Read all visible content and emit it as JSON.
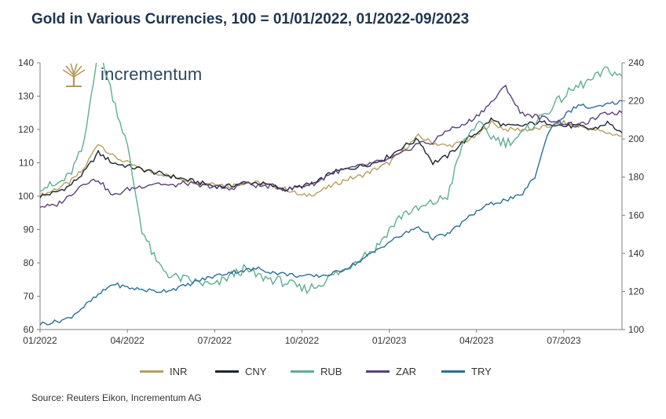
{
  "chart_data": {
    "type": "line",
    "title": "Gold in Various Currencies, 100 = 01/01/2022, 01/2022-09/2023",
    "source": "Source: Reuters Eikon, Incrementum AG",
    "brand": "incrementum",
    "x_ticks": [
      "01/2022",
      "04/2022",
      "07/2022",
      "10/2022",
      "01/2023",
      "04/2023",
      "07/2023"
    ],
    "x_range": [
      "2022-01",
      "2023-09"
    ],
    "y_left": {
      "ticks": [
        60,
        70,
        80,
        90,
        100,
        110,
        120,
        130,
        140
      ],
      "range": [
        60,
        140
      ]
    },
    "y_right": {
      "ticks": [
        100,
        120,
        140,
        160,
        180,
        200,
        220,
        240
      ],
      "range": [
        100,
        240
      ]
    },
    "legend_position": "bottom",
    "x_months": [
      0,
      0.5,
      1,
      1.5,
      2,
      2.5,
      3,
      3.5,
      4,
      4.5,
      5,
      5.5,
      6,
      6.5,
      7,
      7.5,
      8,
      8.5,
      9,
      9.5,
      10,
      10.5,
      11,
      11.5,
      12,
      12.5,
      13,
      13.5,
      14,
      14.5,
      15,
      15.5,
      16,
      16.5,
      17,
      17.5,
      18,
      18.5,
      19,
      19.5,
      20
    ],
    "series": [
      {
        "name": "INR",
        "color": "#b5a160",
        "axis": "left",
        "values": [
          100,
          102,
          104,
          108,
          116,
          112,
          110,
          108,
          107,
          106,
          105,
          104,
          104,
          103,
          104,
          104,
          103,
          102,
          100,
          101,
          103,
          105,
          106,
          108,
          110,
          114,
          118,
          116,
          115,
          116,
          118,
          122,
          120,
          120,
          120,
          121,
          122,
          121,
          120,
          119,
          118
        ]
      },
      {
        "name": "CNY",
        "color": "#1c2533",
        "axis": "left",
        "values": [
          100,
          101,
          103,
          107,
          113,
          110,
          109,
          108,
          107,
          106,
          105,
          104,
          103,
          103,
          104,
          104,
          103,
          102,
          103,
          104,
          107,
          108,
          109,
          110,
          112,
          115,
          117,
          110,
          112,
          116,
          119,
          123,
          121,
          121,
          122,
          122,
          121,
          121,
          120,
          122,
          119
        ]
      },
      {
        "name": "RUB",
        "color": "#5fae92",
        "axis": "left",
        "values": [
          103,
          103,
          106,
          115,
          145,
          130,
          115,
          90,
          80,
          76,
          75,
          74,
          73,
          76,
          78,
          76,
          75,
          74,
          72,
          73,
          76,
          78,
          82,
          84,
          90,
          95,
          96,
          98,
          100,
          115,
          122,
          118,
          116,
          118,
          122,
          126,
          130,
          133,
          135,
          138,
          136
        ]
      },
      {
        "name": "ZAR",
        "color": "#5a3f7b",
        "axis": "left",
        "values": [
          97,
          97,
          100,
          104,
          105,
          100,
          102,
          103,
          104,
          103,
          104,
          103,
          103,
          102,
          104,
          103,
          103,
          102,
          103,
          104,
          107,
          108,
          109,
          110,
          111,
          113,
          116,
          116,
          120,
          121,
          124,
          128,
          133,
          125,
          124,
          123,
          122,
          121,
          123,
          125,
          125
        ]
      },
      {
        "name": "TRY",
        "color": "#2c6f95",
        "axis": "right",
        "values": [
          103,
          104,
          106,
          112,
          118,
          124,
          122,
          121,
          120,
          121,
          123,
          126,
          128,
          130,
          131,
          132,
          130,
          129,
          128,
          128,
          129,
          132,
          136,
          141,
          146,
          150,
          154,
          148,
          150,
          156,
          162,
          166,
          168,
          170,
          180,
          205,
          212,
          218,
          216,
          218,
          220
        ]
      }
    ]
  }
}
